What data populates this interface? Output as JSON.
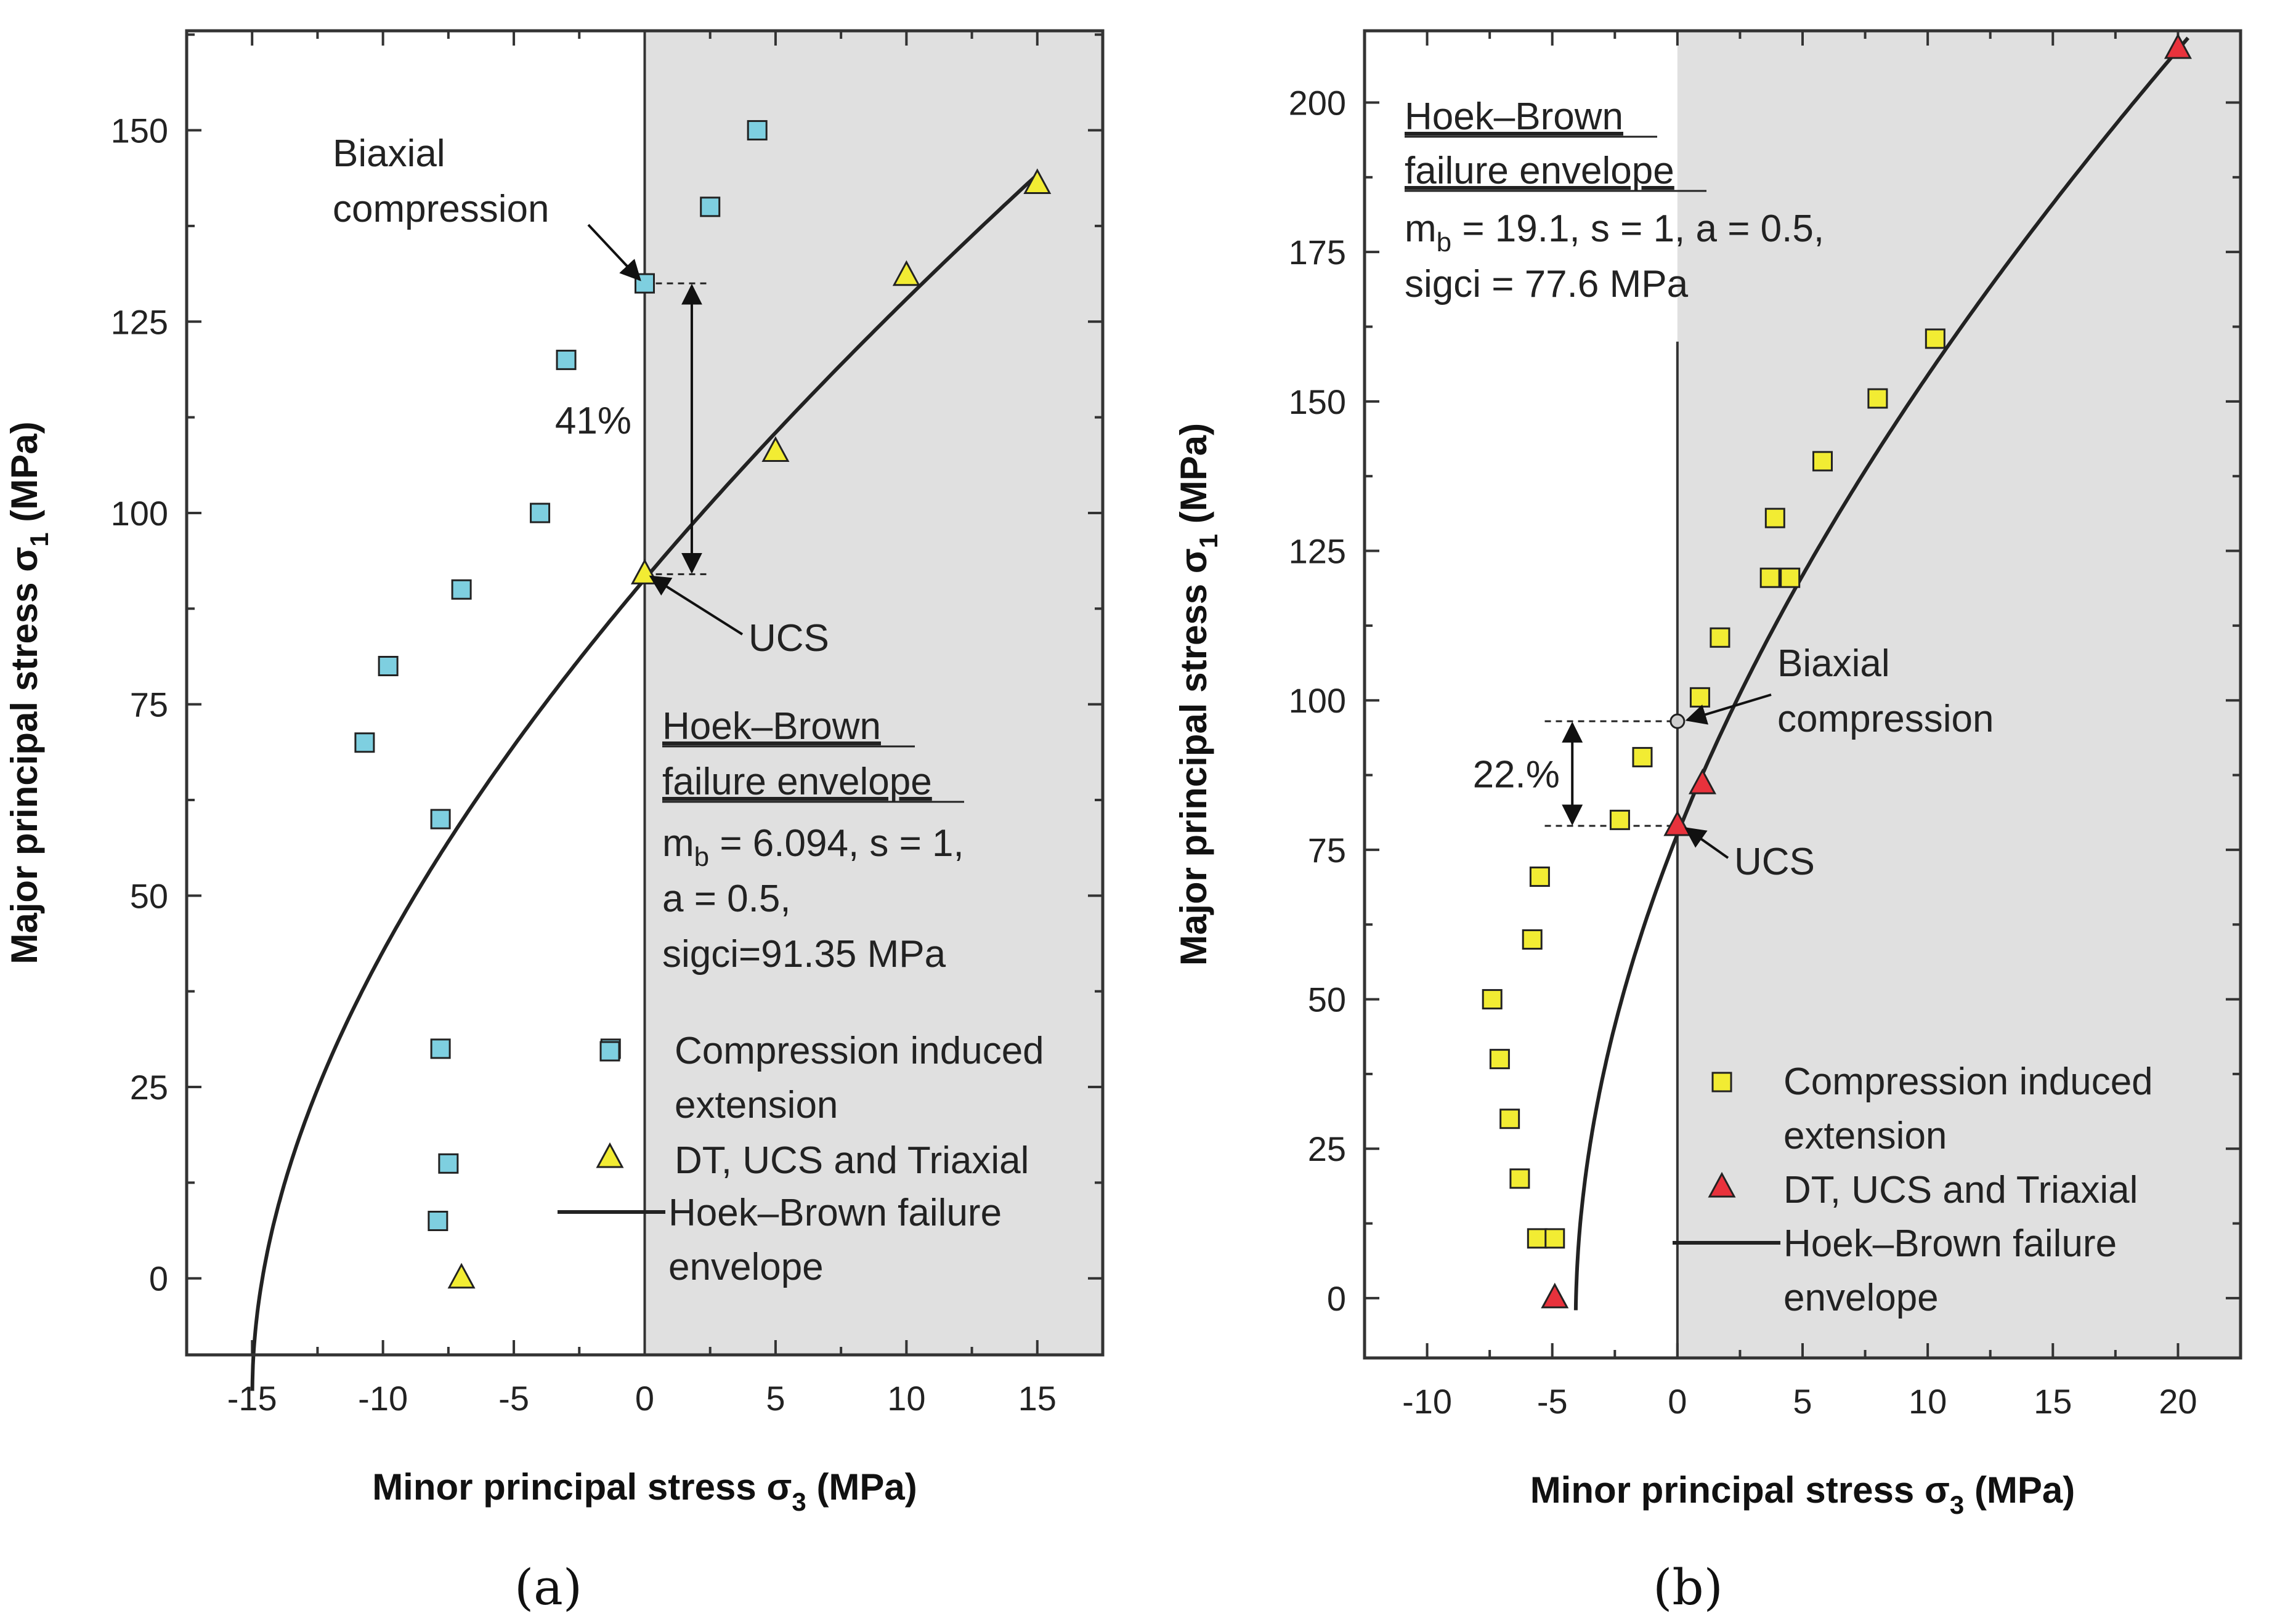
{
  "chart_data": [
    {
      "type": "scatter",
      "panel_label": "(a)",
      "xlabel": {
        "main": "Minor principal stress σ",
        "sub": "3",
        "unit": " (MPa)"
      },
      "ylabel": {
        "main": "Major principal stress σ",
        "sub": "1",
        "unit": " (MPa)"
      },
      "xlim": [
        -17.5,
        17.5
      ],
      "ylim": [
        -10,
        163
      ],
      "xticks": [
        -15,
        -10,
        -5,
        0,
        5,
        10,
        15
      ],
      "xtick_labels": [
        "-15",
        "-10",
        "-5",
        "0",
        "5",
        "10",
        "15"
      ],
      "yticks": [
        0,
        25,
        50,
        75,
        100,
        125,
        150
      ],
      "ytick_labels": [
        "0",
        "25",
        "50",
        "75",
        "100",
        "125",
        "150"
      ],
      "shaded_region": "sigma3 >= 0",
      "series": [
        {
          "name": "Compression induced extension",
          "marker": "square",
          "color": "#7ecfe0",
          "points": [
            [
              4.3,
              150
            ],
            [
              2.5,
              140
            ],
            [
              0,
              130
            ],
            [
              -3,
              120
            ],
            [
              -4,
              100
            ],
            [
              -7,
              90
            ],
            [
              -9.8,
              80
            ],
            [
              -10.7,
              70
            ],
            [
              -7.8,
              60
            ],
            [
              -7.8,
              30
            ],
            [
              -1.3,
              30
            ],
            [
              -7.5,
              15
            ],
            [
              -7.9,
              7.5
            ]
          ]
        },
        {
          "name": "DT, UCS and Triaxial",
          "marker": "triangle",
          "color": "#f2ec33",
          "points": [
            [
              15,
              143
            ],
            [
              10,
              131
            ],
            [
              5,
              108
            ],
            [
              0,
              92
            ],
            [
              -7,
              0
            ]
          ]
        },
        {
          "name": "Hoek–Brown failure envelope",
          "type": "line",
          "color": "#222222",
          "mb": 6.094,
          "s": 1,
          "a": 0.5,
          "sigci": 91.35,
          "x_range": [
            -14.99,
            15
          ]
        }
      ],
      "legend": {
        "items": [
          {
            "label_lines": [
              "Compression induced",
              "extension"
            ],
            "marker": "square"
          },
          {
            "label_lines": [
              "DT, UCS and Triaxial"
            ],
            "marker": "triangle"
          },
          {
            "label_lines": [
              "Hoek–Brown failure",
              "envelope"
            ],
            "marker": "line"
          }
        ]
      },
      "annotations": {
        "biaxial_lines": [
          "Biaxial",
          "compression"
        ],
        "biaxial_point": [
          0,
          130
        ],
        "ucs_label": "UCS",
        "ucs_point": [
          0,
          92
        ],
        "percent_label": "41%",
        "hb_title_lines": [
          "Hoek–Brown",
          "failure envelope"
        ],
        "hb_params": {
          "mb_prefix": "m",
          "mb_sub": "b",
          "line1_rest": " = 6.094, s = 1,",
          "line2": "a = 0.5,",
          "line3": "sigci=91.35 MPa"
        }
      }
    },
    {
      "type": "scatter",
      "panel_label": "(b)",
      "xlabel": {
        "main": "Minor principal stress σ",
        "sub": "3",
        "unit": " (MPa)"
      },
      "ylabel": {
        "main": "Major principal stress σ",
        "sub": "1",
        "unit": " (MPa)"
      },
      "xlim": [
        -12.5,
        22.5
      ],
      "ylim": [
        -10,
        212
      ],
      "xticks": [
        -10,
        -5,
        0,
        5,
        10,
        15,
        20
      ],
      "xtick_labels": [
        "-10",
        "-5",
        "0",
        "5",
        "10",
        "15",
        "20"
      ],
      "yticks": [
        0,
        25,
        50,
        75,
        100,
        125,
        150,
        175,
        200
      ],
      "ytick_labels": [
        "0",
        "25",
        "50",
        "75",
        "100",
        "125",
        "150",
        "175",
        "200"
      ],
      "shaded_region": "sigma3 >= 0",
      "series": [
        {
          "name": "Compression induced extension",
          "marker": "square",
          "color": "#f2ec33",
          "points": [
            [
              10.3,
              160.5
            ],
            [
              8,
              150.5
            ],
            [
              5.8,
              140
            ],
            [
              3.9,
              130.5
            ],
            [
              3.7,
              120.5
            ],
            [
              4.5,
              120.5
            ],
            [
              1.7,
              110.5
            ],
            [
              0.9,
              100.5
            ],
            [
              -1.4,
              90.5
            ],
            [
              -2.3,
              80
            ],
            [
              -5.5,
              70.5
            ],
            [
              -5.8,
              60
            ],
            [
              -7.4,
              50
            ],
            [
              -7.1,
              40
            ],
            [
              -6.7,
              30
            ],
            [
              -6.3,
              20
            ],
            [
              -5.6,
              10
            ],
            [
              -4.9,
              10
            ]
          ]
        },
        {
          "name": "DT, UCS and Triaxial",
          "marker": "triangle",
          "color": "#e8323c",
          "points": [
            [
              20,
              209
            ],
            [
              1,
              86
            ],
            [
              0,
              79
            ],
            [
              -4.9,
              0
            ]
          ]
        },
        {
          "name": "Hoek–Brown failure envelope",
          "type": "line",
          "color": "#222222",
          "mb": 19.1,
          "s": 1,
          "a": 0.5,
          "sigci": 77.6,
          "x_range": [
            -4.06,
            20.4
          ]
        }
      ],
      "legend": {
        "items": [
          {
            "label_lines": [
              "Compression induced",
              "extension"
            ],
            "marker": "square"
          },
          {
            "label_lines": [
              "DT, UCS and Triaxial"
            ],
            "marker": "triangle"
          },
          {
            "label_lines": [
              "Hoek–Brown failure",
              "envelope"
            ],
            "marker": "line"
          }
        ]
      },
      "annotations": {
        "biaxial_lines": [
          "Biaxial",
          "compression"
        ],
        "biaxial_point": [
          0,
          96.5
        ],
        "ucs_label": "UCS",
        "ucs_point": [
          0,
          79
        ],
        "percent_label": "22.%",
        "hb_title_lines": [
          "Hoek–Brown",
          "failure envelope"
        ],
        "hb_params": {
          "mb_prefix": "m",
          "mb_sub": "b",
          "line1_rest": " = 19.1, s = 1, a = 0.5,",
          "line3": "sigci = 77.6 MPa"
        }
      }
    }
  ]
}
